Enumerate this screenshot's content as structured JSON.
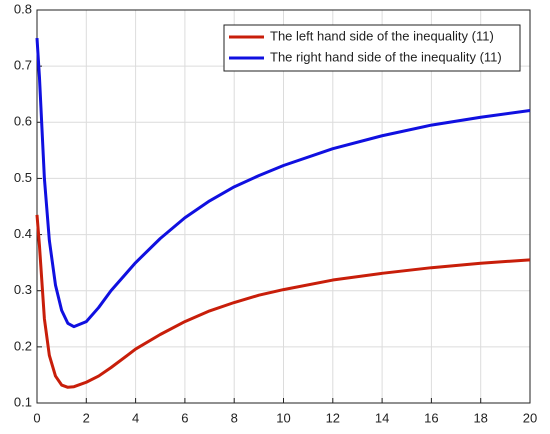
{
  "chart_data": {
    "type": "line",
    "x": [
      0,
      0.1,
      0.3,
      0.5,
      0.75,
      1,
      1.25,
      1.5,
      2,
      2.5,
      3,
      4,
      5,
      6,
      7,
      8,
      9,
      10,
      12,
      14,
      16,
      18,
      20
    ],
    "series": [
      {
        "name": "The left hand side of the inequality (11)",
        "color": "#c81e0a",
        "values": [
          0.435,
          0.38,
          0.25,
          0.185,
          0.148,
          0.132,
          0.128,
          0.129,
          0.137,
          0.148,
          0.163,
          0.196,
          0.222,
          0.245,
          0.264,
          0.279,
          0.292,
          0.302,
          0.319,
          0.331,
          0.341,
          0.349,
          0.355
        ]
      },
      {
        "name": "The right hand side of the inequality (11)",
        "color": "#1010e0",
        "values": [
          0.75,
          0.68,
          0.5,
          0.39,
          0.31,
          0.265,
          0.242,
          0.236,
          0.245,
          0.27,
          0.3,
          0.35,
          0.393,
          0.43,
          0.46,
          0.485,
          0.505,
          0.523,
          0.553,
          0.576,
          0.595,
          0.609,
          0.621
        ]
      }
    ],
    "xlim": [
      0,
      20
    ],
    "xticks": [
      0,
      2,
      4,
      6,
      8,
      10,
      12,
      14,
      16,
      18,
      20
    ],
    "ylim": [
      0.1,
      0.8
    ],
    "yticks": [
      0.1,
      0.2,
      0.3,
      0.4,
      0.5,
      0.6,
      0.7,
      0.8
    ],
    "grid": true,
    "legend": "top-right"
  }
}
